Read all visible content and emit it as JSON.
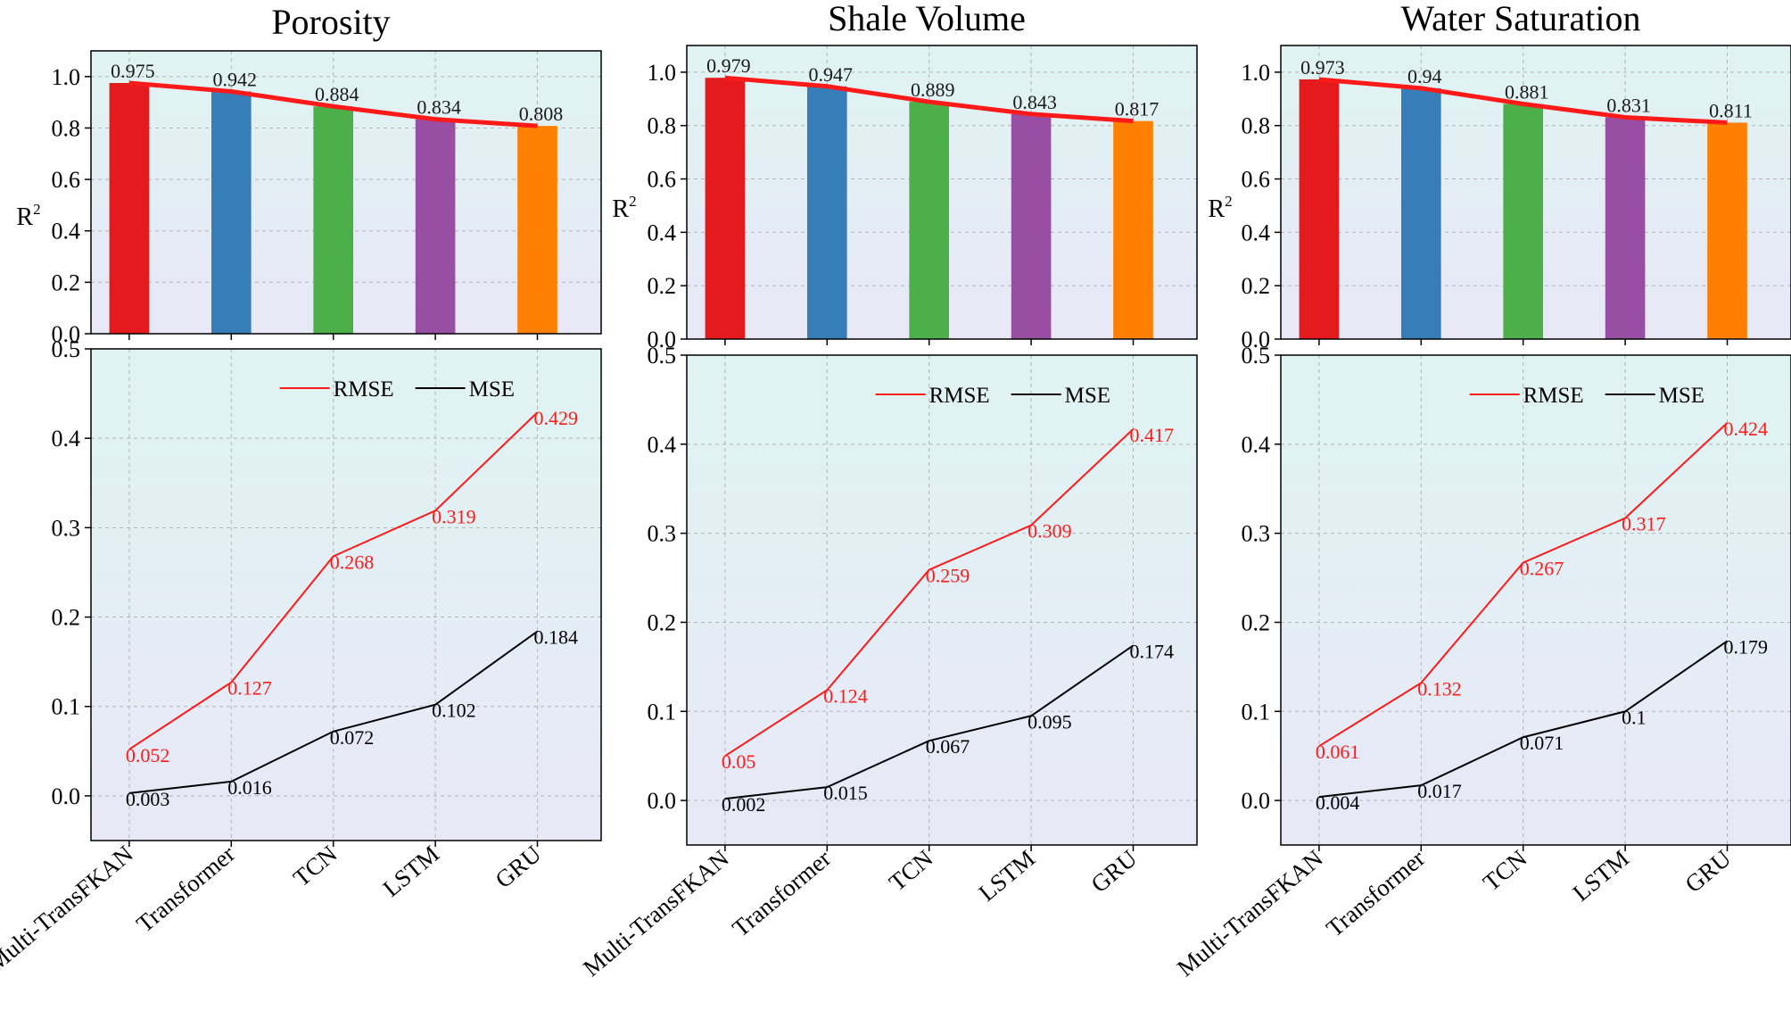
{
  "figure": {
    "categories": [
      "Multi-TransFKAN",
      "Transformer",
      "TCN",
      "LSTM",
      "GRU"
    ],
    "bar_colors": [
      "#e41a1c",
      "#377eb8",
      "#4daf4a",
      "#984ea3",
      "#ff7f00"
    ],
    "r2_line_color": "#ff1a1a",
    "rmse_color": "#ff1a1a",
    "mse_color": "#000000",
    "background_top": "#dff4f2",
    "background_bottom": "#e8e8f7"
  },
  "chart_data": [
    {
      "type": "bar",
      "panel": "porosity-r2",
      "title": "Porosity",
      "ylabel": "R",
      "ylabel_sup": "2",
      "categories": [
        "Multi-TransFKAN",
        "Transformer",
        "TCN",
        "LSTM",
        "GRU"
      ],
      "values": [
        0.975,
        0.942,
        0.884,
        0.834,
        0.808
      ],
      "labels": [
        "0.975",
        "0.942",
        "0.884",
        "0.834",
        "0.808"
      ],
      "ylim": [
        0,
        1.1
      ],
      "yticks": [
        "0.0",
        "0.2",
        "0.4",
        "0.6",
        "0.8",
        "1.0"
      ],
      "grid": true
    },
    {
      "type": "line",
      "panel": "porosity-errors",
      "categories": [
        "Multi-TransFKAN",
        "Transformer",
        "TCN",
        "LSTM",
        "GRU"
      ],
      "series": [
        {
          "name": "RMSE",
          "values": [
            0.052,
            0.127,
            0.268,
            0.319,
            0.429
          ],
          "labels": [
            "0.052",
            "0.127",
            "0.268",
            "0.319",
            "0.429"
          ]
        },
        {
          "name": "MSE",
          "values": [
            0.003,
            0.016,
            0.072,
            0.102,
            0.184
          ],
          "labels": [
            "0.003",
            "0.016",
            "0.072",
            "0.102",
            "0.184"
          ]
        }
      ],
      "ylim": [
        -0.05,
        0.5
      ],
      "yticks": [
        "0.0",
        "0.1",
        "0.2",
        "0.3",
        "0.4",
        "0.5"
      ],
      "legend": "top-right",
      "grid": true
    },
    {
      "type": "bar",
      "panel": "shale-r2",
      "title": "Shale Volume",
      "ylabel": "R",
      "ylabel_sup": "2",
      "categories": [
        "Multi-TransFKAN",
        "Transformer",
        "TCN",
        "LSTM",
        "GRU"
      ],
      "values": [
        0.979,
        0.947,
        0.889,
        0.843,
        0.817
      ],
      "labels": [
        "0.979",
        "0.947",
        "0.889",
        "0.843",
        "0.817"
      ],
      "ylim": [
        0,
        1.1
      ],
      "yticks": [
        "0.0",
        "0.2",
        "0.4",
        "0.6",
        "0.8",
        "1.0"
      ],
      "grid": true
    },
    {
      "type": "line",
      "panel": "shale-errors",
      "categories": [
        "Multi-TransFKAN",
        "Transformer",
        "TCN",
        "LSTM",
        "GRU"
      ],
      "series": [
        {
          "name": "RMSE",
          "values": [
            0.05,
            0.124,
            0.259,
            0.309,
            0.417
          ],
          "labels": [
            "0.05",
            "0.124",
            "0.259",
            "0.309",
            "0.417"
          ]
        },
        {
          "name": "MSE",
          "values": [
            0.002,
            0.015,
            0.067,
            0.095,
            0.174
          ],
          "labels": [
            "0.002",
            "0.015",
            "0.067",
            "0.095",
            "0.174"
          ]
        }
      ],
      "ylim": [
        -0.05,
        0.5
      ],
      "yticks": [
        "0.0",
        "0.1",
        "0.2",
        "0.3",
        "0.4",
        "0.5"
      ],
      "legend": "top-right",
      "grid": true
    },
    {
      "type": "bar",
      "panel": "water-r2",
      "title": "Water Saturation",
      "ylabel": "R",
      "ylabel_sup": "2",
      "categories": [
        "Multi-TransFKAN",
        "Transformer",
        "TCN",
        "LSTM",
        "GRU"
      ],
      "values": [
        0.973,
        0.94,
        0.881,
        0.831,
        0.811
      ],
      "labels": [
        "0.973",
        "0.94",
        "0.881",
        "0.831",
        "0.811"
      ],
      "ylim": [
        0,
        1.1
      ],
      "yticks": [
        "0.0",
        "0.2",
        "0.4",
        "0.6",
        "0.8",
        "1.0"
      ],
      "grid": true
    },
    {
      "type": "line",
      "panel": "water-errors",
      "categories": [
        "Multi-TransFKAN",
        "Transformer",
        "TCN",
        "LSTM",
        "GRU"
      ],
      "series": [
        {
          "name": "RMSE",
          "values": [
            0.061,
            0.132,
            0.267,
            0.317,
            0.424
          ],
          "labels": [
            "0.061",
            "0.132",
            "0.267",
            "0.317",
            "0.424"
          ]
        },
        {
          "name": "MSE",
          "values": [
            0.004,
            0.017,
            0.071,
            0.1,
            0.179
          ],
          "labels": [
            "0.004",
            "0.017",
            "0.071",
            "0.1",
            "0.179"
          ]
        }
      ],
      "ylim": [
        -0.05,
        0.5
      ],
      "yticks": [
        "0.0",
        "0.1",
        "0.2",
        "0.3",
        "0.4",
        "0.5"
      ],
      "legend": "top-right",
      "grid": true
    }
  ]
}
